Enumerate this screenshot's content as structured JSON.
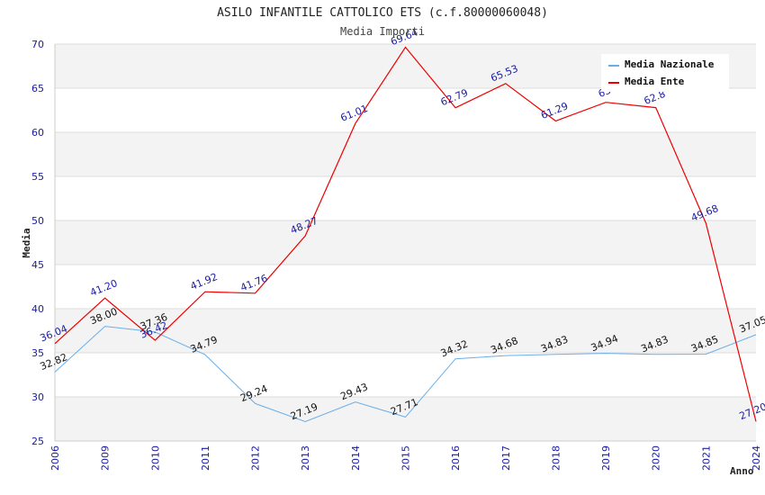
{
  "chart_data": {
    "type": "line",
    "title": "ASILO INFANTILE CATTOLICO ETS (c.f.80000060048)",
    "subtitle": "Media Importi",
    "xlabel": "Anno",
    "ylabel": "Media",
    "ylim": [
      25,
      70
    ],
    "yticks": [
      "25",
      "30",
      "35",
      "40",
      "45",
      "50",
      "55",
      "60",
      "65",
      "70"
    ],
    "categories": [
      "2006",
      "2009",
      "2010",
      "2011",
      "2012",
      "2013",
      "2014",
      "2015",
      "2016",
      "2017",
      "2018",
      "2019",
      "2020",
      "2021",
      "2024"
    ],
    "series": [
      {
        "name": "Media Nazionale",
        "color": "#6aaee8",
        "label_color": "#111111",
        "values": [
          32.82,
          38.0,
          37.36,
          34.79,
          29.24,
          27.19,
          29.43,
          27.71,
          34.32,
          34.68,
          34.83,
          34.94,
          34.83,
          34.85,
          37.05
        ],
        "labels": [
          "32.82",
          "38.00",
          "37.36",
          "34.79",
          "29.24",
          "27.19",
          "29.43",
          "27.71",
          "34.32",
          "34.68",
          "34.83",
          "34.94",
          "34.83",
          "34.85",
          "37.05"
        ]
      },
      {
        "name": "Media Ente",
        "color": "#ee0000",
        "label_color": "#1a1aa0",
        "values": [
          36.04,
          41.2,
          36.42,
          41.92,
          41.76,
          48.27,
          61.01,
          69.64,
          62.79,
          65.53,
          61.29,
          63.4,
          62.8,
          49.68,
          27.2
        ],
        "labels": [
          "36.04",
          "41.20",
          "36.42",
          "41.92",
          "41.76",
          "48.27",
          "61.01",
          "69.64",
          "62.79",
          "65.53",
          "61.29",
          "63",
          "62.8",
          "49.68",
          "27.20"
        ]
      }
    ],
    "grid": true,
    "legend": "top-right"
  }
}
